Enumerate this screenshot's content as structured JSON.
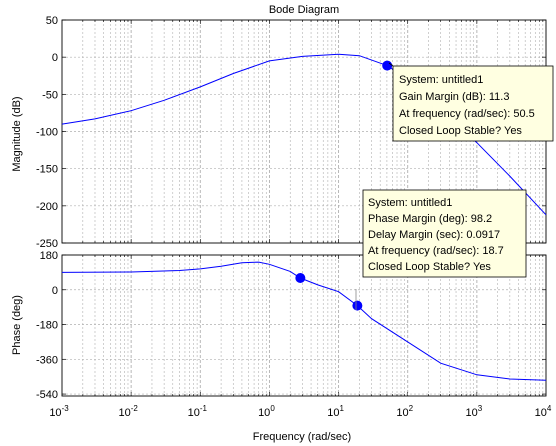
{
  "chart_data": {
    "type": "line",
    "title": "Bode Diagram",
    "xlabel": "Frequency  (rad/sec)",
    "x_scale": "log",
    "xlim": [
      0.001,
      10000
    ],
    "x_ticks": [
      {
        "value": 0.001,
        "base": "10",
        "exp": "-3"
      },
      {
        "value": 0.01,
        "base": "10",
        "exp": "-2"
      },
      {
        "value": 0.1,
        "base": "10",
        "exp": "-1"
      },
      {
        "value": 1,
        "base": "10",
        "exp": "0"
      },
      {
        "value": 10,
        "base": "10",
        "exp": "1"
      },
      {
        "value": 100,
        "base": "10",
        "exp": "2"
      },
      {
        "value": 1000,
        "base": "10",
        "exp": "3"
      },
      {
        "value": 10000,
        "base": "10",
        "exp": "4"
      }
    ],
    "grid": true,
    "panels": [
      {
        "name": "magnitude",
        "ylabel": "Magnitude (dB)",
        "ylim": [
          -250,
          50
        ],
        "yticks": [
          50,
          0,
          -50,
          -100,
          -150,
          -200,
          -250
        ],
        "ytick_labels": [
          "50",
          "0",
          "-50",
          "-100",
          "-150",
          "-200",
          "-250"
        ],
        "color": "#0000ff",
        "points": [
          [
            0.001,
            -90
          ],
          [
            0.003,
            -83
          ],
          [
            0.01,
            -72
          ],
          [
            0.03,
            -58
          ],
          [
            0.1,
            -40
          ],
          [
            0.3,
            -22
          ],
          [
            1,
            -5
          ],
          [
            3,
            1
          ],
          [
            10,
            4
          ],
          [
            20,
            2
          ],
          [
            50.5,
            -11.3
          ],
          [
            100,
            -30
          ],
          [
            300,
            -70
          ],
          [
            1000,
            -115
          ],
          [
            3000,
            -160
          ],
          [
            10000,
            -212
          ]
        ],
        "markers": [
          [
            50.5,
            -11.3
          ]
        ]
      },
      {
        "name": "phase",
        "ylabel": "Phase (deg)",
        "ylim": [
          -550,
          180
        ],
        "yticks": [
          180,
          0,
          -180,
          -360,
          -540
        ],
        "ytick_labels": [
          "180",
          "0",
          "-180",
          "-360",
          "-540"
        ],
        "color": "#0000ff",
        "points": [
          [
            0.001,
            90
          ],
          [
            0.01,
            92
          ],
          [
            0.05,
            100
          ],
          [
            0.1,
            108
          ],
          [
            0.2,
            122
          ],
          [
            0.4,
            140
          ],
          [
            0.7,
            143
          ],
          [
            1,
            132
          ],
          [
            2,
            95
          ],
          [
            2.8,
            61
          ],
          [
            5,
            25
          ],
          [
            10,
            -10
          ],
          [
            18.7,
            -82
          ],
          [
            30,
            -150
          ],
          [
            100,
            -270
          ],
          [
            300,
            -380
          ],
          [
            1000,
            -440
          ],
          [
            3000,
            -462
          ],
          [
            10000,
            -468
          ]
        ],
        "markers": [
          [
            2.8,
            61
          ],
          [
            18.7,
            -82
          ]
        ]
      }
    ]
  },
  "tooltips": {
    "gain": {
      "line1": "System: untitled1",
      "line2": "Gain Margin (dB): 11.3",
      "line3": "At frequency (rad/sec): 50.5",
      "line4": "Closed Loop Stable? Yes"
    },
    "phase": {
      "line1": "System: untitled1",
      "line2": "Phase Margin (deg): 98.2",
      "line3": "Delay Margin (sec): 0.0917",
      "line4": "At frequency (rad/sec): 18.7",
      "line5": "Closed Loop Stable? Yes"
    }
  },
  "colors": {
    "curve": "#0000ff",
    "grid": "#b0b0b0",
    "tooltip_bg": "#ffffe1"
  }
}
